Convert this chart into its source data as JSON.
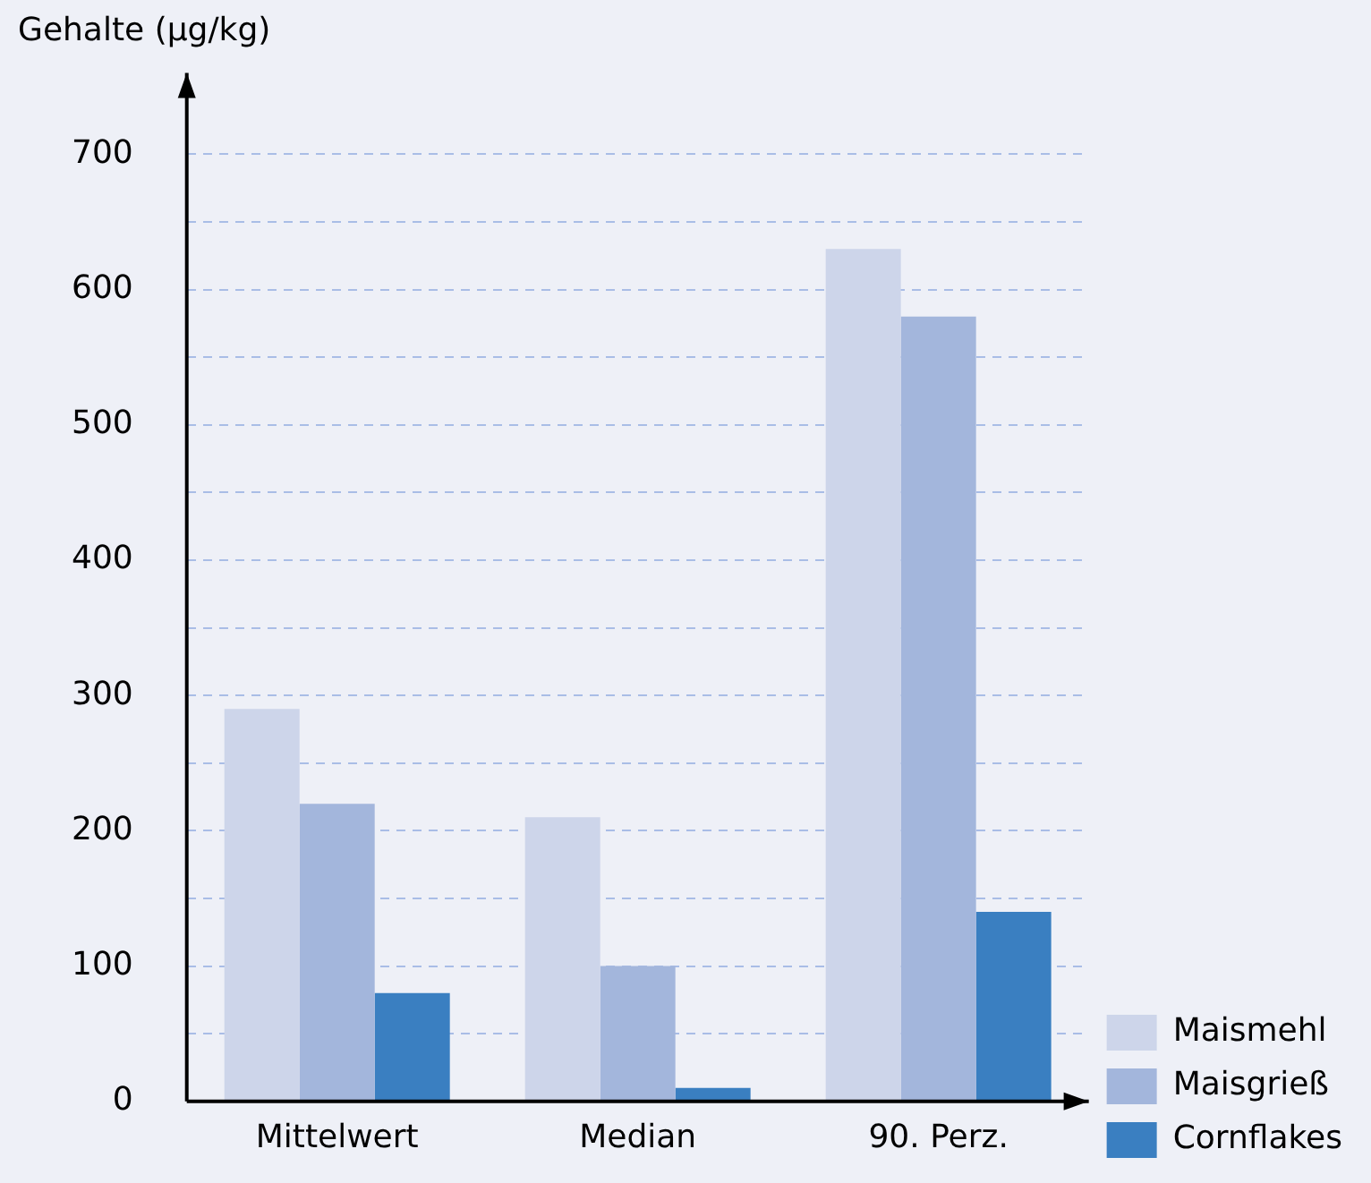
{
  "chart_data": {
    "type": "bar",
    "ylabel": "Gehalte (µg/kg)",
    "categories": [
      "Mittelwert",
      "Median",
      "90. Perz."
    ],
    "series": [
      {
        "name": "Maismehl",
        "color": "#cdd5ea",
        "values": [
          290,
          210,
          630
        ]
      },
      {
        "name": "Maisgrieß",
        "color": "#a3b6dc",
        "values": [
          220,
          100,
          580
        ]
      },
      {
        "name": "Cornflakes",
        "color": "#3a7fc1",
        "values": [
          80,
          10,
          140
        ]
      }
    ],
    "ylim": [
      0,
      760
    ],
    "yticks": [
      0,
      {
        "value": 50,
        "label": null
      },
      100,
      {
        "value": 150,
        "label": null
      },
      200,
      {
        "value": 250,
        "label": null
      },
      300,
      {
        "value": 350,
        "label": null
      },
      400,
      {
        "value": 450,
        "label": null
      },
      500,
      {
        "value": 550,
        "label": null
      },
      600,
      {
        "value": 650,
        "label": null
      },
      700
    ],
    "grid": "y",
    "legend": "bottom right"
  }
}
